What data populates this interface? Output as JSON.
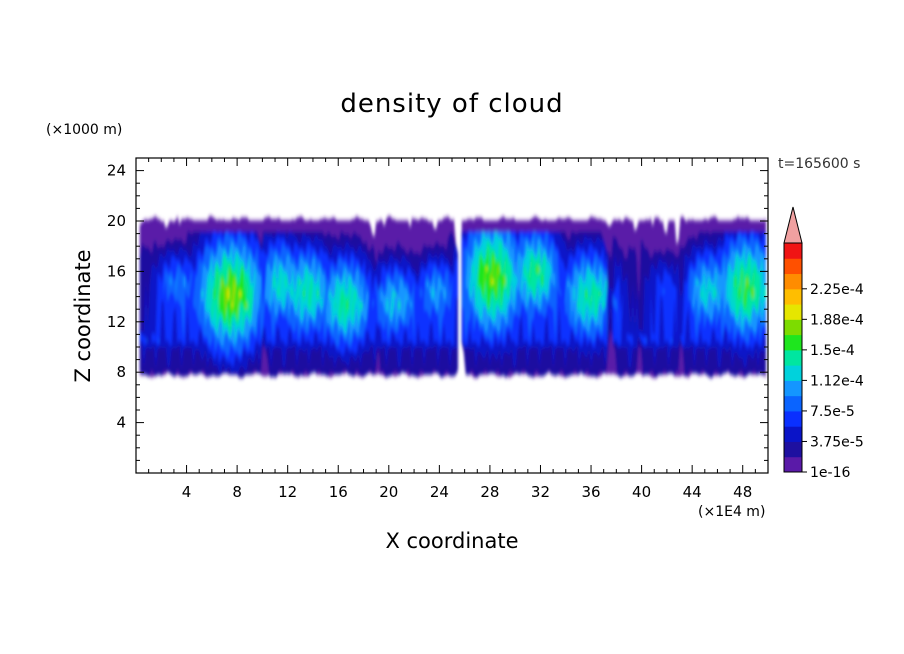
{
  "chart_data": {
    "type": "heatmap",
    "title": "density of cloud",
    "xlabel": "X coordinate",
    "ylabel": "Z coordinate",
    "x_unit": "(×1E4 m)",
    "y_unit": "(×1000 m)",
    "time_label": "t=165600 s",
    "xlim": [
      0,
      50
    ],
    "ylim": [
      0,
      25
    ],
    "x_ticks": [
      4,
      8,
      12,
      16,
      20,
      24,
      28,
      32,
      36,
      40,
      44,
      48
    ],
    "y_ticks": [
      4,
      8,
      12,
      16,
      20,
      24
    ],
    "x_tick_labels": [
      "4",
      "8",
      "12",
      "16",
      "20",
      "24",
      "28",
      "32",
      "36",
      "40",
      "44",
      "48"
    ],
    "y_tick_labels": [
      "4",
      "8",
      "12",
      "16",
      "20",
      "24"
    ],
    "cloud_base": 8,
    "cloud_top": 20,
    "colorbar": {
      "levels": [
        "1e-16",
        "1.875e-5",
        "3.75e-5",
        "5.625e-5",
        "7.5e-5",
        "9.375e-5",
        "1.125e-4",
        "1.3125e-4",
        "1.5e-4",
        "1.6875e-4",
        "1.875e-4",
        "2.0625e-4",
        "2.25e-4",
        "2.4375e-4",
        "2.625e-4"
      ],
      "tick_labels": [
        "1e-16",
        "3.75e-5",
        "7.5e-5",
        "1.12e-4",
        "1.5e-4",
        "1.88e-4",
        "2.25e-4"
      ],
      "tick_level_index": [
        0,
        2,
        4,
        6,
        8,
        10,
        12
      ],
      "colors": [
        "#5a1aa8",
        "#1e10a0",
        "#0a14c8",
        "#0a30ff",
        "#0a64ff",
        "#1496ff",
        "#00d2dc",
        "#00e6a0",
        "#1ee61e",
        "#7ddc00",
        "#e6e600",
        "#ffbe00",
        "#ff8c00",
        "#ff5000",
        "#f01414"
      ],
      "extend_color": "#f0a0a0"
    }
  }
}
